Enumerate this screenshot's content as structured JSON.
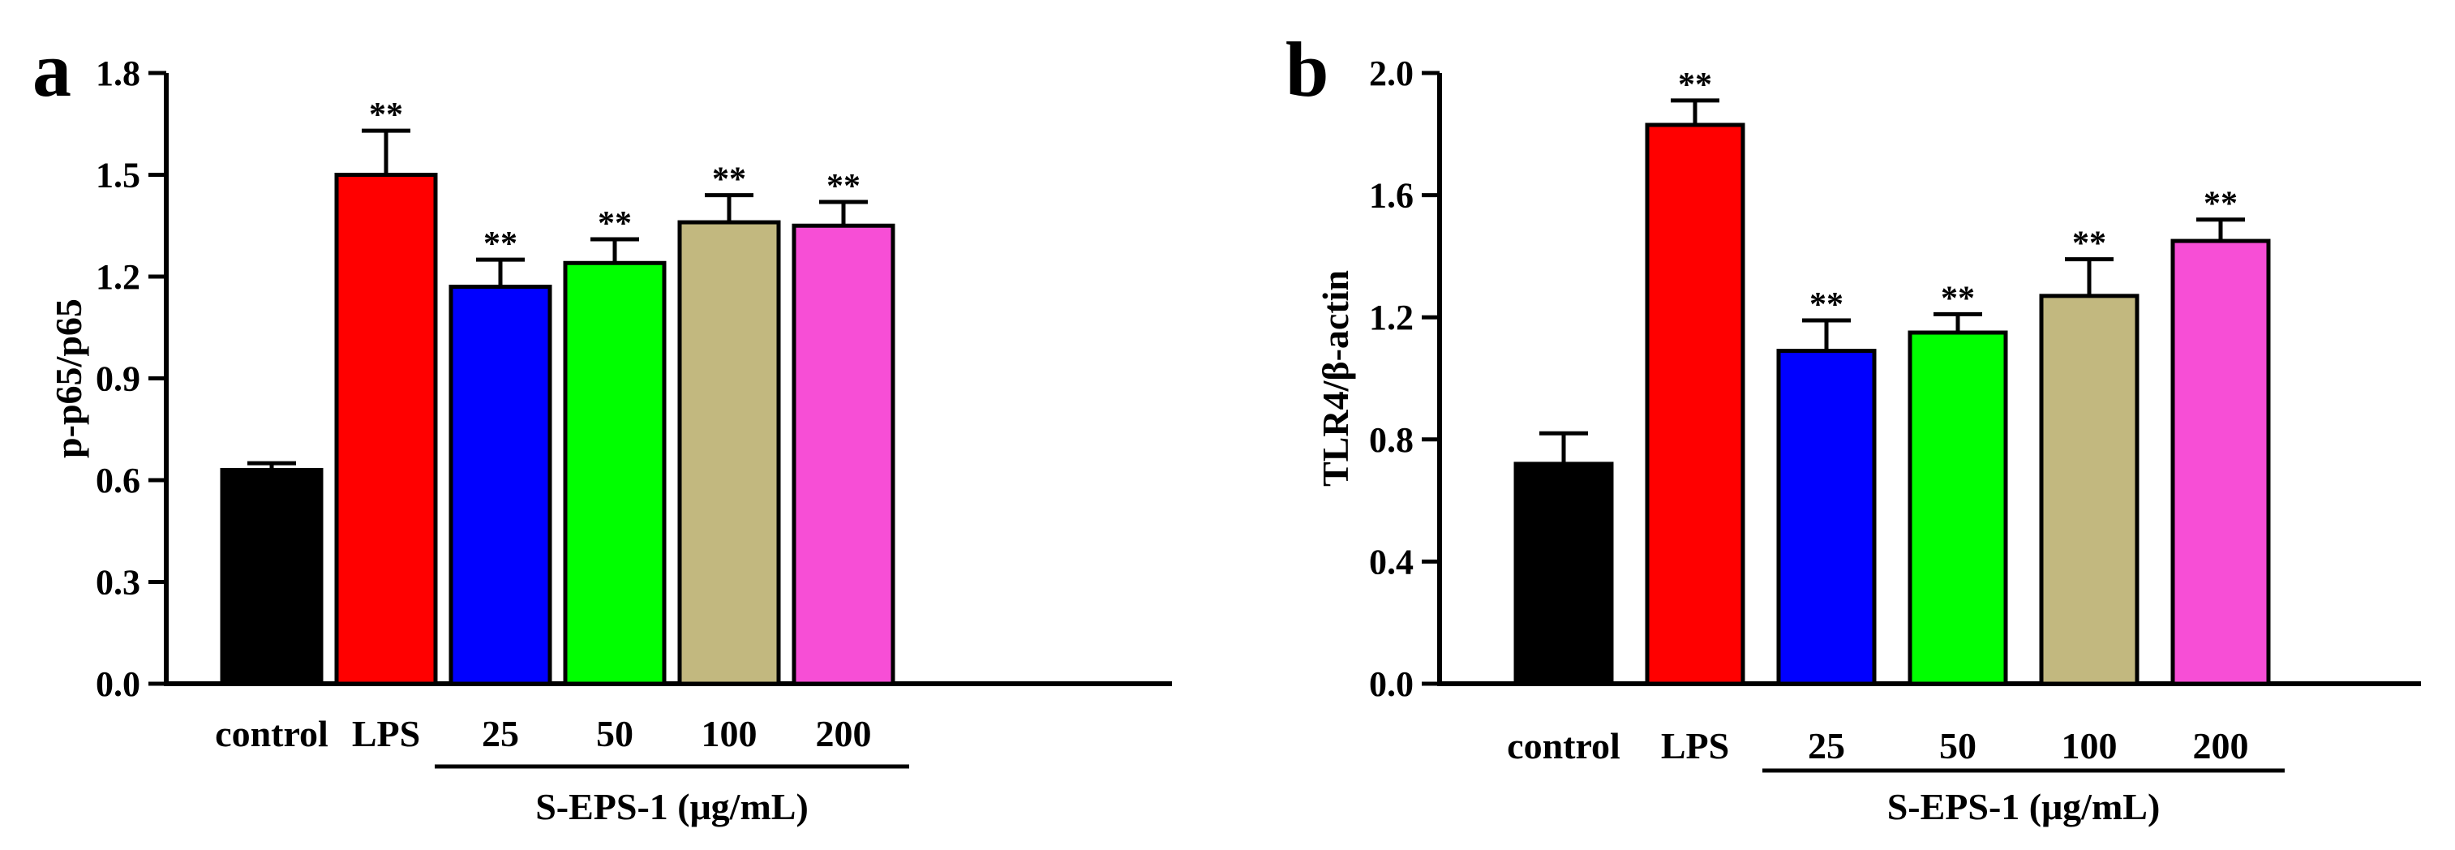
{
  "chart_data": [
    {
      "type": "bar",
      "panel": "a",
      "title": "",
      "xlabel": "",
      "ylabel": "p-p65/p65",
      "ylim": [
        0,
        1.8
      ],
      "yticks": [
        "0.0",
        "0.3",
        "0.6",
        "0.9",
        "1.2",
        "1.5",
        "1.8"
      ],
      "categories": [
        "control",
        "LPS",
        "25",
        "50",
        "100",
        "200"
      ],
      "values": [
        0.63,
        1.5,
        1.17,
        1.24,
        1.36,
        1.35
      ],
      "errors": [
        0.02,
        0.13,
        0.08,
        0.07,
        0.08,
        0.07
      ],
      "colors": [
        "#000000",
        "#ff0000",
        "#0000ff",
        "#00ff00",
        "#c2b87f",
        "#f74ed6"
      ],
      "significance": [
        "",
        "**",
        "**",
        "**",
        "**",
        "**"
      ],
      "group_label": "S-EPS-1 (μg/mL)",
      "group_span": [
        2,
        5
      ]
    },
    {
      "type": "bar",
      "panel": "b",
      "title": "",
      "xlabel": "",
      "ylabel": "TLR4/β-actin",
      "ylim": [
        0,
        2.0
      ],
      "yticks": [
        "0.0",
        "0.4",
        "0.8",
        "1.2",
        "1.6",
        "2.0"
      ],
      "categories": [
        "control",
        "LPS",
        "25",
        "50",
        "100",
        "200"
      ],
      "values": [
        0.72,
        1.83,
        1.09,
        1.15,
        1.27,
        1.45
      ],
      "errors": [
        0.1,
        0.08,
        0.1,
        0.06,
        0.12,
        0.07
      ],
      "colors": [
        "#000000",
        "#ff0000",
        "#0000ff",
        "#00ff00",
        "#c2b87f",
        "#f74ed6"
      ],
      "significance": [
        "",
        "**",
        "**",
        "**",
        "**",
        "**"
      ],
      "group_label": "S-EPS-1 (μg/mL)",
      "group_span": [
        2,
        5
      ]
    }
  ]
}
